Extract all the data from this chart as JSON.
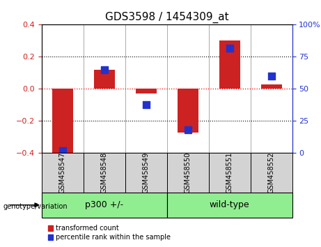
{
  "title": "GDS3598 / 1454309_at",
  "samples": [
    "GSM458547",
    "GSM458548",
    "GSM458549",
    "GSM458550",
    "GSM458551",
    "GSM458552"
  ],
  "red_bars": [
    -0.41,
    0.12,
    -0.03,
    -0.27,
    0.3,
    0.03
  ],
  "blue_dots": [
    2,
    65,
    38,
    18,
    82,
    60
  ],
  "groups": [
    {
      "label": "p300 +/-",
      "color": "#90ee90",
      "span": [
        0,
        3
      ]
    },
    {
      "label": "wild-type",
      "color": "#90ee90",
      "span": [
        3,
        6
      ]
    }
  ],
  "left_ylim": [
    -0.4,
    0.4
  ],
  "right_ylim": [
    0,
    100
  ],
  "left_yticks": [
    -0.4,
    -0.2,
    0,
    0.2,
    0.4
  ],
  "right_yticks": [
    0,
    25,
    50,
    75,
    100
  ],
  "right_yticklabels": [
    "0",
    "25",
    "50",
    "75",
    "100%"
  ],
  "bar_color": "#cc2222",
  "dot_color": "#2233cc",
  "bar_width": 0.5,
  "dot_size": 55,
  "group_label_text": "genotype/variation",
  "legend_items": [
    "transformed count",
    "percentile rank within the sample"
  ],
  "group_box_color": "#d3d3d3",
  "green_color": "#90ee90",
  "title_fontsize": 11,
  "tick_fontsize": 8,
  "group_label_fontsize": 9,
  "sample_fontsize": 7
}
